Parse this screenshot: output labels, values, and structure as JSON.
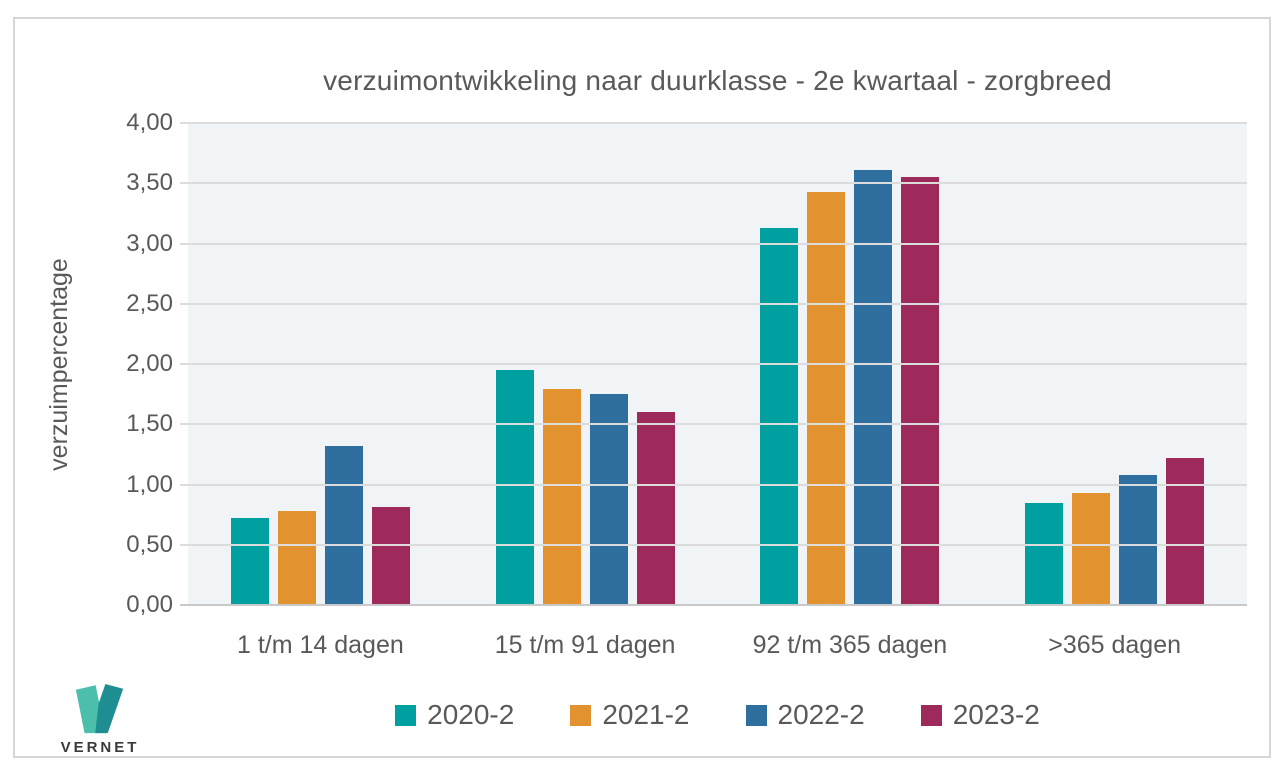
{
  "chart_data": {
    "type": "bar",
    "title": "verzuimontwikkeling naar duurklasse - 2e kwartaal - zorgbreed",
    "xlabel": "",
    "ylabel": "verzuimpercentage",
    "categories": [
      "1 t/m 14 dagen",
      "15 t/m 91 dagen",
      "92 t/m 365 dagen",
      ">365 dagen"
    ],
    "series": [
      {
        "name": "2020-2",
        "color": "#00a0a0",
        "values": [
          0.72,
          1.95,
          3.13,
          0.85
        ]
      },
      {
        "name": "2021-2",
        "color": "#e2922e",
        "values": [
          0.78,
          1.79,
          3.43,
          0.93
        ]
      },
      {
        "name": "2022-2",
        "color": "#2f6f9f",
        "values": [
          1.32,
          1.75,
          3.61,
          1.08
        ]
      },
      {
        "name": "2023-2",
        "color": "#9e2a5c",
        "values": [
          0.81,
          1.6,
          3.55,
          1.22
        ]
      }
    ],
    "ylim": [
      0,
      4
    ],
    "yticks": [
      "0,00",
      "0,50",
      "1,00",
      "1,50",
      "2,00",
      "2,50",
      "3,00",
      "3,50",
      "4,00"
    ],
    "grid": true,
    "legend_position": "bottom",
    "plot_background": "#f0f4f7",
    "text_color": "#595959"
  },
  "logo": {
    "text": "VERNET",
    "color_light": "#4cbfac",
    "color_dark": "#1e8e93"
  }
}
